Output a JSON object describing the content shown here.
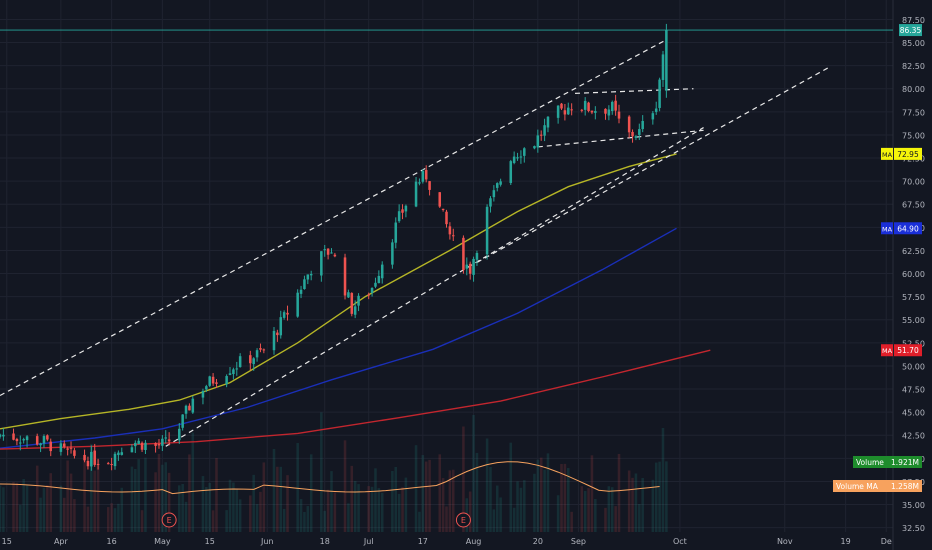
{
  "chart_data": {
    "type": "candlestick",
    "price_axis": {
      "ticks": [
        "32.50",
        "35.00",
        "37.50",
        "40.00",
        "42.50",
        "45.00",
        "47.50",
        "50.00",
        "52.50",
        "55.00",
        "57.50",
        "60.00",
        "62.50",
        "65.00",
        "67.50",
        "70.00",
        "72.50",
        "75.00",
        "77.50",
        "80.00",
        "82.50",
        "85.00",
        "87.50"
      ],
      "range": [
        31.0,
        88.5
      ]
    },
    "time_axis": {
      "labels": [
        "15",
        "Apr",
        "16",
        "May",
        "15",
        "Jun",
        "18",
        "Jul",
        "17",
        "Aug",
        "20",
        "Sep",
        "Oct",
        "Nov",
        "19",
        "De"
      ],
      "label_days": [
        -16,
        0,
        15,
        30,
        44,
        61,
        78,
        91,
        107,
        122,
        141,
        153,
        183,
        214,
        232,
        244
      ],
      "range_days": [
        -18,
        246
      ]
    },
    "last_price": {
      "label": "86.35",
      "value": 86.35,
      "color": "#26a69a"
    },
    "moving_averages": [
      {
        "badge": "MA",
        "value_label": "72.95",
        "end_value": 72.95,
        "color": "#b5b526",
        "badge_bg": "#f5f50a",
        "badge_fg": "#131722",
        "points": [
          [
            -18,
            43.2
          ],
          [
            0,
            44.3
          ],
          [
            20,
            45.3
          ],
          [
            35,
            46.3
          ],
          [
            50,
            48.2
          ],
          [
            70,
            52.5
          ],
          [
            90,
            57.5
          ],
          [
            115,
            62.5
          ],
          [
            135,
            66.7
          ],
          [
            150,
            69.4
          ],
          [
            168,
            71.6
          ],
          [
            182,
            72.95
          ]
        ]
      },
      {
        "badge": "MA",
        "value_label": "64.90",
        "end_value": 64.9,
        "color": "#1a2fb8",
        "badge_bg": "#1a2fd8",
        "badge_fg": "#ffffff",
        "points": [
          [
            -18,
            41.1
          ],
          [
            10,
            42.2
          ],
          [
            30,
            43.2
          ],
          [
            55,
            45.5
          ],
          [
            80,
            48.5
          ],
          [
            110,
            51.8
          ],
          [
            135,
            55.7
          ],
          [
            160,
            60.4
          ],
          [
            182,
            64.9
          ]
        ]
      },
      {
        "badge": "MA",
        "value_label": "51.70",
        "end_value": 51.7,
        "color": "#c2262e",
        "badge_bg": "#e01f2a",
        "badge_fg": "#ffffff",
        "points": [
          [
            -18,
            41.0
          ],
          [
            10,
            41.3
          ],
          [
            40,
            41.8
          ],
          [
            70,
            42.7
          ],
          [
            100,
            44.4
          ],
          [
            130,
            46.2
          ],
          [
            160,
            48.8
          ],
          [
            192,
            51.7
          ]
        ]
      }
    ],
    "trendlines": [
      {
        "from": [
          -18,
          46.8
        ],
        "to": [
          179,
          85.3
        ]
      },
      {
        "from": [
          31,
          41.3
        ],
        "to": [
          190,
          75.8
        ]
      },
      {
        "from": [
          123,
          61.2
        ],
        "to": [
          227,
          82.3
        ]
      },
      {
        "from": [
          141,
          73.7
        ],
        "to": [
          190,
          75.5
        ]
      },
      {
        "from": [
          152,
          79.5
        ],
        "to": [
          187,
          80.0
        ]
      }
    ],
    "volume_labels": [
      {
        "text": "Volume",
        "value": "1.921M",
        "bg": "#1e8c2c"
      },
      {
        "text": "Volume MA",
        "value": "1.258M",
        "bg": "#f7a25e"
      }
    ],
    "earnings_markers": [
      {
        "label": "E",
        "day": 32
      },
      {
        "label": "E",
        "day": 119
      }
    ]
  }
}
